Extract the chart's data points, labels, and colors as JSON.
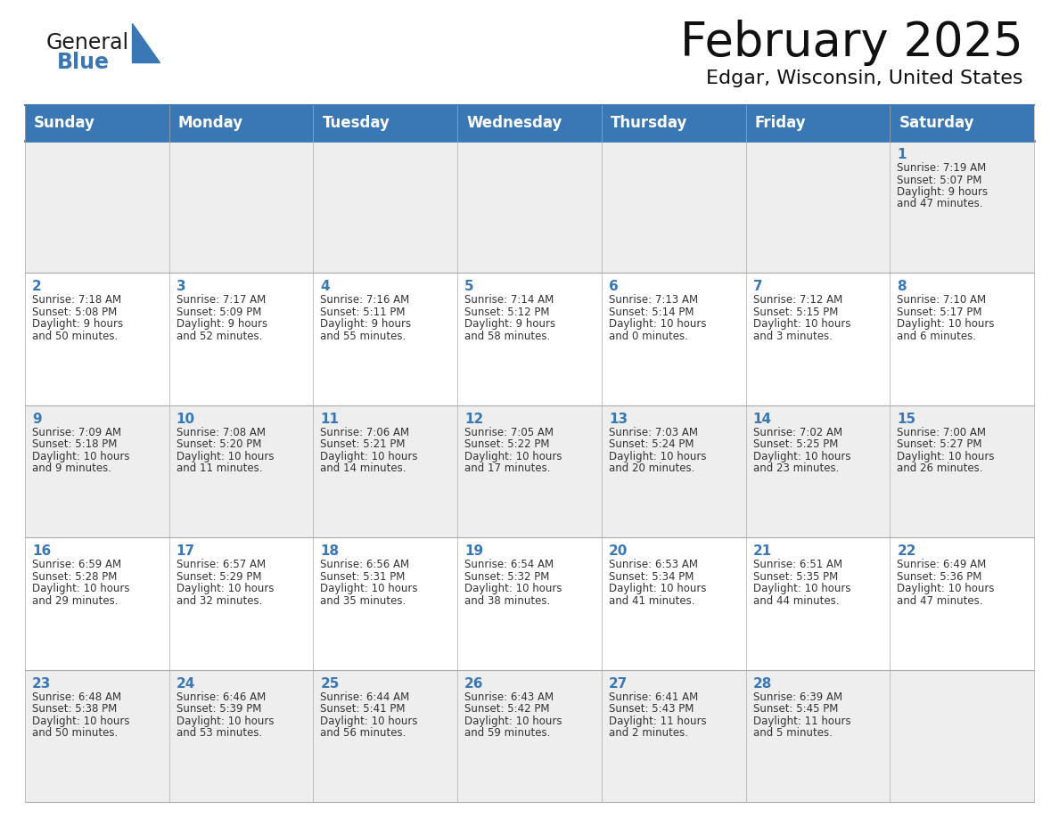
{
  "title": "February 2025",
  "subtitle": "Edgar, Wisconsin, United States",
  "days_of_week": [
    "Sunday",
    "Monday",
    "Tuesday",
    "Wednesday",
    "Thursday",
    "Friday",
    "Saturday"
  ],
  "header_bg": "#3a78b5",
  "header_text": "#ffffff",
  "cell_bg_odd": "#eeeeee",
  "cell_bg_even": "#ffffff",
  "day_number_color": "#3a78b5",
  "text_color": "#333333",
  "border_color": "#3a78b5",
  "logo_general_color": "#1a1a1a",
  "logo_blue_color": "#3a78b5",
  "calendar_data": [
    {
      "day": 1,
      "col": 6,
      "row": 0,
      "sunrise": "7:19 AM",
      "sunset": "5:07 PM",
      "daylight": "9 hours and 47 minutes."
    },
    {
      "day": 2,
      "col": 0,
      "row": 1,
      "sunrise": "7:18 AM",
      "sunset": "5:08 PM",
      "daylight": "9 hours and 50 minutes."
    },
    {
      "day": 3,
      "col": 1,
      "row": 1,
      "sunrise": "7:17 AM",
      "sunset": "5:09 PM",
      "daylight": "9 hours and 52 minutes."
    },
    {
      "day": 4,
      "col": 2,
      "row": 1,
      "sunrise": "7:16 AM",
      "sunset": "5:11 PM",
      "daylight": "9 hours and 55 minutes."
    },
    {
      "day": 5,
      "col": 3,
      "row": 1,
      "sunrise": "7:14 AM",
      "sunset": "5:12 PM",
      "daylight": "9 hours and 58 minutes."
    },
    {
      "day": 6,
      "col": 4,
      "row": 1,
      "sunrise": "7:13 AM",
      "sunset": "5:14 PM",
      "daylight": "10 hours and 0 minutes."
    },
    {
      "day": 7,
      "col": 5,
      "row": 1,
      "sunrise": "7:12 AM",
      "sunset": "5:15 PM",
      "daylight": "10 hours and 3 minutes."
    },
    {
      "day": 8,
      "col": 6,
      "row": 1,
      "sunrise": "7:10 AM",
      "sunset": "5:17 PM",
      "daylight": "10 hours and 6 minutes."
    },
    {
      "day": 9,
      "col": 0,
      "row": 2,
      "sunrise": "7:09 AM",
      "sunset": "5:18 PM",
      "daylight": "10 hours and 9 minutes."
    },
    {
      "day": 10,
      "col": 1,
      "row": 2,
      "sunrise": "7:08 AM",
      "sunset": "5:20 PM",
      "daylight": "10 hours and 11 minutes."
    },
    {
      "day": 11,
      "col": 2,
      "row": 2,
      "sunrise": "7:06 AM",
      "sunset": "5:21 PM",
      "daylight": "10 hours and 14 minutes."
    },
    {
      "day": 12,
      "col": 3,
      "row": 2,
      "sunrise": "7:05 AM",
      "sunset": "5:22 PM",
      "daylight": "10 hours and 17 minutes."
    },
    {
      "day": 13,
      "col": 4,
      "row": 2,
      "sunrise": "7:03 AM",
      "sunset": "5:24 PM",
      "daylight": "10 hours and 20 minutes."
    },
    {
      "day": 14,
      "col": 5,
      "row": 2,
      "sunrise": "7:02 AM",
      "sunset": "5:25 PM",
      "daylight": "10 hours and 23 minutes."
    },
    {
      "day": 15,
      "col": 6,
      "row": 2,
      "sunrise": "7:00 AM",
      "sunset": "5:27 PM",
      "daylight": "10 hours and 26 minutes."
    },
    {
      "day": 16,
      "col": 0,
      "row": 3,
      "sunrise": "6:59 AM",
      "sunset": "5:28 PM",
      "daylight": "10 hours and 29 minutes."
    },
    {
      "day": 17,
      "col": 1,
      "row": 3,
      "sunrise": "6:57 AM",
      "sunset": "5:29 PM",
      "daylight": "10 hours and 32 minutes."
    },
    {
      "day": 18,
      "col": 2,
      "row": 3,
      "sunrise": "6:56 AM",
      "sunset": "5:31 PM",
      "daylight": "10 hours and 35 minutes."
    },
    {
      "day": 19,
      "col": 3,
      "row": 3,
      "sunrise": "6:54 AM",
      "sunset": "5:32 PM",
      "daylight": "10 hours and 38 minutes."
    },
    {
      "day": 20,
      "col": 4,
      "row": 3,
      "sunrise": "6:53 AM",
      "sunset": "5:34 PM",
      "daylight": "10 hours and 41 minutes."
    },
    {
      "day": 21,
      "col": 5,
      "row": 3,
      "sunrise": "6:51 AM",
      "sunset": "5:35 PM",
      "daylight": "10 hours and 44 minutes."
    },
    {
      "day": 22,
      "col": 6,
      "row": 3,
      "sunrise": "6:49 AM",
      "sunset": "5:36 PM",
      "daylight": "10 hours and 47 minutes."
    },
    {
      "day": 23,
      "col": 0,
      "row": 4,
      "sunrise": "6:48 AM",
      "sunset": "5:38 PM",
      "daylight": "10 hours and 50 minutes."
    },
    {
      "day": 24,
      "col": 1,
      "row": 4,
      "sunrise": "6:46 AM",
      "sunset": "5:39 PM",
      "daylight": "10 hours and 53 minutes."
    },
    {
      "day": 25,
      "col": 2,
      "row": 4,
      "sunrise": "6:44 AM",
      "sunset": "5:41 PM",
      "daylight": "10 hours and 56 minutes."
    },
    {
      "day": 26,
      "col": 3,
      "row": 4,
      "sunrise": "6:43 AM",
      "sunset": "5:42 PM",
      "daylight": "10 hours and 59 minutes."
    },
    {
      "day": 27,
      "col": 4,
      "row": 4,
      "sunrise": "6:41 AM",
      "sunset": "5:43 PM",
      "daylight": "11 hours and 2 minutes."
    },
    {
      "day": 28,
      "col": 5,
      "row": 4,
      "sunrise": "6:39 AM",
      "sunset": "5:45 PM",
      "daylight": "11 hours and 5 minutes."
    }
  ]
}
